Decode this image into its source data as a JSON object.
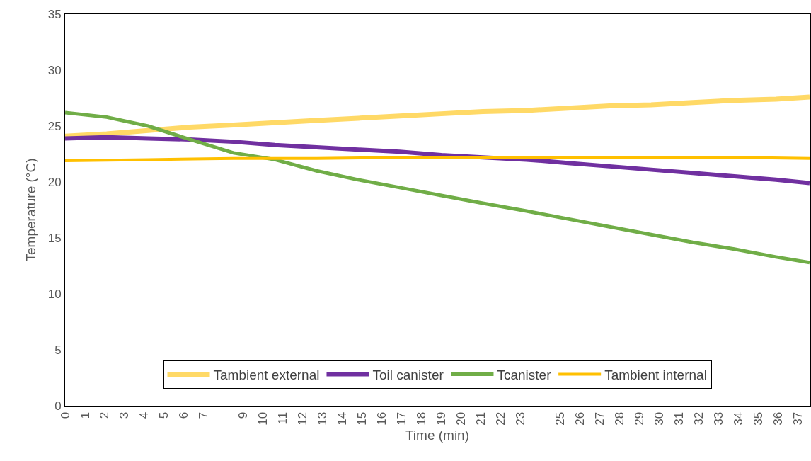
{
  "chart_data": {
    "type": "line",
    "xlabel": "Time (min)",
    "ylabel": "Temperature (°C)",
    "xlim": [
      0,
      37.6
    ],
    "xticks": [
      0,
      1,
      2,
      3,
      4,
      5,
      6,
      7,
      9,
      10,
      11,
      12,
      13,
      14,
      15,
      16,
      17,
      18,
      19,
      20,
      21,
      22,
      23,
      25,
      26,
      27,
      28,
      29,
      30,
      31,
      32,
      33,
      34,
      35,
      36,
      37
    ],
    "ylim": [
      0,
      35
    ],
    "yticks": [
      0,
      5,
      10,
      15,
      20,
      25,
      30,
      35
    ],
    "grid": false,
    "legend": "bottom",
    "marker": "none",
    "line_style": "solid",
    "series": [
      {
        "name": "Tambient external",
        "color": "#ffd966",
        "x": [
          0,
          2.1,
          4.2,
          6.3,
          8.5,
          10.6,
          12.7,
          14.8,
          16.9,
          19.0,
          21.1,
          23.3,
          25.4,
          27.5,
          29.6,
          31.7,
          33.8,
          35.9,
          37.6
        ],
        "values": [
          24.1,
          24.3,
          24.6,
          24.9,
          25.1,
          25.3,
          25.5,
          25.7,
          25.9,
          26.1,
          26.3,
          26.4,
          26.6,
          26.8,
          26.9,
          27.1,
          27.3,
          27.4,
          27.6
        ]
      },
      {
        "name": "Toil canister",
        "color": "#7030a0",
        "x": [
          0,
          2.1,
          4.2,
          6.3,
          8.5,
          10.6,
          12.7,
          14.8,
          16.9,
          19.0,
          21.1,
          23.3,
          25.4,
          27.5,
          29.6,
          31.7,
          33.8,
          35.9,
          37.6
        ],
        "values": [
          23.9,
          24.0,
          23.9,
          23.8,
          23.6,
          23.3,
          23.1,
          22.9,
          22.7,
          22.4,
          22.2,
          22.0,
          21.7,
          21.4,
          21.1,
          20.8,
          20.5,
          20.2,
          19.9
        ]
      },
      {
        "name": "Tcanister",
        "color": "#70ad47",
        "x": [
          0,
          2.1,
          4.2,
          6.3,
          8.5,
          10.6,
          12.7,
          14.8,
          16.9,
          19.0,
          21.1,
          23.3,
          25.4,
          27.5,
          29.6,
          31.7,
          33.8,
          35.9,
          37.6
        ],
        "values": [
          26.2,
          25.8,
          25.0,
          23.8,
          22.6,
          22.0,
          21.0,
          20.2,
          19.5,
          18.8,
          18.1,
          17.4,
          16.7,
          16.0,
          15.3,
          14.6,
          14.0,
          13.3,
          12.8
        ]
      },
      {
        "name": "Tambient internal",
        "color": "#ffc000",
        "x": [
          0,
          4.2,
          8.5,
          12.7,
          16.9,
          21.1,
          25.4,
          29.6,
          33.8,
          37.6
        ],
        "values": [
          21.9,
          22.0,
          22.1,
          22.1,
          22.2,
          22.2,
          22.2,
          22.2,
          22.2,
          22.1
        ]
      }
    ]
  }
}
